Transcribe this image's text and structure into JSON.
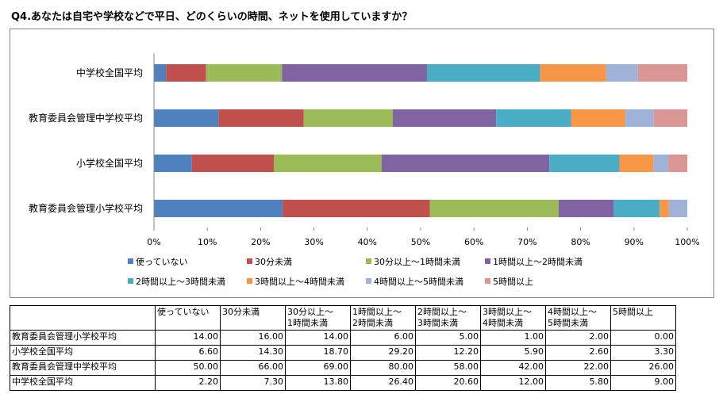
{
  "title": "Q4.あなたは自宅や学校などで平日、どのくらいの時間、ネットを使用していますか？",
  "colors": [
    "#4f81bd",
    "#c0504d",
    "#9bbb59",
    "#8064a2",
    "#4bacc6",
    "#f79646",
    "#9fb3d9",
    "#d99694"
  ],
  "chart_data": {
    "type": "bar",
    "orientation": "horizontal",
    "stacking": "percent",
    "categories": [
      "中学校全国平均",
      "教育委員会管理中学校平均",
      "小学校全国平均",
      "教育委員会管理小学校平均"
    ],
    "series": [
      {
        "name": "使っていない",
        "values": [
          2.2,
          50.0,
          6.6,
          14.0
        ]
      },
      {
        "name": "30分未満",
        "values": [
          7.3,
          66.0,
          14.3,
          16.0
        ]
      },
      {
        "name": "30分以上～1時間未満",
        "values": [
          13.8,
          69.0,
          18.7,
          14.0
        ]
      },
      {
        "name": "1時間以上～2時間未満",
        "values": [
          26.4,
          80.0,
          29.2,
          6.0
        ]
      },
      {
        "name": "2時間以上～3時間未満",
        "values": [
          20.6,
          58.0,
          12.2,
          5.0
        ]
      },
      {
        "name": "3時間以上～4時間未満",
        "values": [
          12.0,
          42.0,
          5.9,
          1.0
        ]
      },
      {
        "name": "4時間以上～5時間未満",
        "values": [
          5.8,
          22.0,
          2.6,
          2.0
        ]
      },
      {
        "name": "5時間以上",
        "values": [
          9.0,
          26.0,
          3.3,
          0.0
        ]
      }
    ],
    "xticks": [
      "0%",
      "10%",
      "20%",
      "30%",
      "40%",
      "50%",
      "60%",
      "70%",
      "80%",
      "90%",
      "100%"
    ],
    "xlim": [
      0,
      100
    ],
    "grid": false,
    "legend": "bottom"
  },
  "table": {
    "headers": [
      [
        "使っていない"
      ],
      [
        "30分未満"
      ],
      [
        "30分以上～",
        "1時間未満"
      ],
      [
        "1時間以上～",
        "2時間未満"
      ],
      [
        "2時間以上～",
        "3時間未満"
      ],
      [
        "3時間以上～",
        "4時間未満"
      ],
      [
        "4時間以上～",
        "5時間未満"
      ],
      [
        "5時間以上"
      ]
    ],
    "rows": [
      {
        "label": "教育委員会管理小学校平均",
        "values": [
          "14.00",
          "16.00",
          "14.00",
          "6.00",
          "5.00",
          "1.00",
          "2.00",
          "0.00"
        ]
      },
      {
        "label": "小学校全国平均",
        "values": [
          "6.60",
          "14.30",
          "18.70",
          "29.20",
          "12.20",
          "5.90",
          "2.60",
          "3.30"
        ]
      },
      {
        "label": "教育委員会管理中学校平均",
        "values": [
          "50.00",
          "66.00",
          "69.00",
          "80.00",
          "58.00",
          "42.00",
          "22.00",
          "26.00"
        ]
      },
      {
        "label": "中学校全国平均",
        "values": [
          "2.20",
          "7.30",
          "13.80",
          "26.40",
          "20.60",
          "12.00",
          "5.80",
          "9.00"
        ]
      }
    ]
  }
}
